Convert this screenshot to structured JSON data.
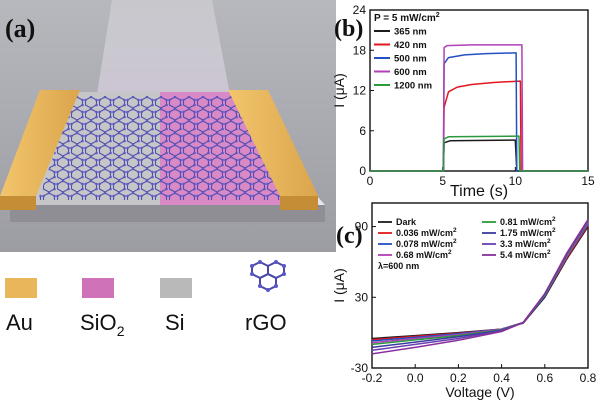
{
  "panels": {
    "a": {
      "label": "(a)"
    },
    "b": {
      "label": "(b)"
    },
    "c": {
      "label": "(c)"
    }
  },
  "device_legend": [
    {
      "label": "Au",
      "color": "#e9b65c"
    },
    {
      "label": "SiO2",
      "color": "#cf72b8"
    },
    {
      "label": "Si",
      "color": "#b9b9b9"
    },
    {
      "label": "rGO",
      "color": "#5b57c8"
    }
  ],
  "colors": {
    "gold": "#e9b65c",
    "pink": "#d98ac6",
    "grey": "#c6c6c6",
    "substrate": "#a7a7ab",
    "background": "#a6a7ad",
    "beam": "#c9a6da"
  },
  "chart_data": [
    {
      "type": "line",
      "panel": "(b)",
      "annotation": "P = 5 mW/cm",
      "annotation_sup": "2",
      "xlabel": "Time (s)",
      "ylabel": "I (μA)",
      "xlim": [
        0,
        15
      ],
      "ylim": [
        0,
        24
      ],
      "xticks": [
        0,
        5,
        10,
        15
      ],
      "yticks": [
        0,
        6,
        12,
        18,
        24
      ],
      "grid": false,
      "legend_position": "top-left",
      "series": [
        {
          "name": "365 nm",
          "color": "#1b1b1b",
          "x": [
            0,
            5.05,
            5.1,
            5.5,
            9.9,
            10.0,
            10.1,
            15
          ],
          "y": [
            0,
            0,
            4.2,
            4.5,
            4.6,
            4.6,
            0,
            0
          ]
        },
        {
          "name": "420 nm",
          "color": "#e0181d",
          "x": [
            0,
            5.05,
            5.1,
            5.4,
            6.0,
            7.0,
            8.5,
            10.3,
            10.35,
            10.4,
            15
          ],
          "y": [
            0,
            0,
            9.5,
            11.8,
            12.5,
            12.9,
            13.2,
            13.4,
            13.4,
            0,
            0
          ]
        },
        {
          "name": "500 nm",
          "color": "#2350c0",
          "x": [
            0,
            5.05,
            5.1,
            5.4,
            6.5,
            8.0,
            10.0,
            10.05,
            10.1,
            15
          ],
          "y": [
            0,
            0,
            16.0,
            16.9,
            17.3,
            17.5,
            17.6,
            17.6,
            0,
            0
          ]
        },
        {
          "name": "600 nm",
          "color": "#b23fb6",
          "x": [
            0,
            5.05,
            5.1,
            5.3,
            7.0,
            10.4,
            10.45,
            10.5,
            15
          ],
          "y": [
            0,
            0,
            18.4,
            18.7,
            18.8,
            18.8,
            18.8,
            0,
            0
          ]
        },
        {
          "name": "1200 nm",
          "color": "#2a9a3d",
          "x": [
            0,
            5.05,
            5.1,
            5.4,
            10.2,
            10.25,
            10.3,
            15
          ],
          "y": [
            0,
            0,
            4.8,
            5.1,
            5.2,
            5.2,
            0,
            0
          ]
        }
      ]
    },
    {
      "type": "line",
      "panel": "(c)",
      "annotation": "λ=600 nm",
      "xlabel": "Voltage (V)",
      "ylabel": "I (μA)",
      "xlim": [
        -0.2,
        0.8
      ],
      "ylim": [
        -30,
        110
      ],
      "xticks": [
        -0.2,
        0.0,
        0.2,
        0.4,
        0.6,
        0.8
      ],
      "xtick_labels": [
        "-0.2",
        "0.0",
        "0.2",
        "0.4",
        "0.6",
        "0.8"
      ],
      "yticks": [
        -30,
        30,
        90
      ],
      "grid": false,
      "legend_position": "top",
      "series": [
        {
          "name": "Dark",
          "unit_sup": "",
          "color": "#1b1b1b",
          "x": [
            -0.2,
            0.0,
            0.2,
            0.4,
            0.5,
            0.6,
            0.7,
            0.8
          ],
          "y": [
            -5.0,
            -2.5,
            0.0,
            3.0,
            8.0,
            30,
            62,
            90
          ]
        },
        {
          "name": "0.036 mW/cm",
          "unit_sup": "2",
          "color": "#e0181d",
          "x": [
            -0.2,
            0.0,
            0.2,
            0.4,
            0.5,
            0.6,
            0.7,
            0.8
          ],
          "y": [
            -6.0,
            -3.2,
            -0.5,
            3.0,
            8.5,
            31,
            63,
            91
          ]
        },
        {
          "name": "0.078 mW/cm",
          "unit_sup": "2",
          "color": "#2350c0",
          "x": [
            -0.2,
            0.0,
            0.2,
            0.4,
            0.5,
            0.6,
            0.7,
            0.8
          ],
          "y": [
            -7.0,
            -4.0,
            -1.0,
            3.0,
            8.5,
            31,
            64,
            92
          ]
        },
        {
          "name": "0.68 mW/cm",
          "unit_sup": "2",
          "color": "#b23fb6",
          "x": [
            -0.2,
            0.0,
            0.2,
            0.4,
            0.5,
            0.6,
            0.7,
            0.8
          ],
          "y": [
            -8.5,
            -5.0,
            -1.8,
            2.8,
            8.5,
            32,
            64,
            93
          ]
        },
        {
          "name": "0.81 mW/cm",
          "unit_sup": "2",
          "color": "#2a9a3d",
          "x": [
            -0.2,
            0.0,
            0.2,
            0.4,
            0.5,
            0.6,
            0.7,
            0.8
          ],
          "y": [
            -10.0,
            -6.2,
            -2.5,
            2.5,
            8.5,
            32,
            65,
            94
          ]
        },
        {
          "name": "1.75 mW/cm",
          "unit_sup": "2",
          "color": "#3a3aa0",
          "x": [
            -0.2,
            0.0,
            0.2,
            0.4,
            0.5,
            0.6,
            0.7,
            0.8
          ],
          "y": [
            -12.5,
            -8.0,
            -3.5,
            2.0,
            8.5,
            33,
            66,
            95
          ]
        },
        {
          "name": "3.3 mW/cm",
          "unit_sup": "2",
          "color": "#6b3fb0",
          "x": [
            -0.2,
            0.0,
            0.2,
            0.4,
            0.5,
            0.6,
            0.7,
            0.8
          ],
          "y": [
            -15.0,
            -10.0,
            -5.0,
            1.5,
            8.5,
            33,
            66,
            95
          ]
        },
        {
          "name": "5.4 mW/cm",
          "unit_sup": "2",
          "color": "#8a2f9c",
          "x": [
            -0.2,
            0.0,
            0.2,
            0.4,
            0.5,
            0.6,
            0.7,
            0.8
          ],
          "y": [
            -18.0,
            -12.5,
            -6.5,
            1.0,
            8.5,
            33,
            67,
            96
          ]
        }
      ]
    }
  ]
}
